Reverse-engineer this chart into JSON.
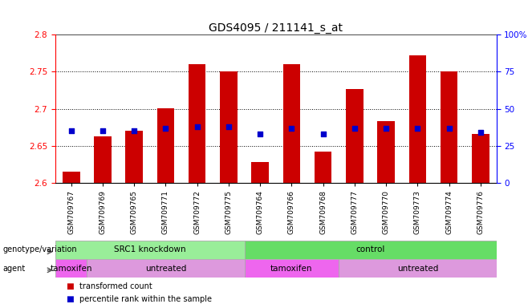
{
  "title": "GDS4095 / 211141_s_at",
  "samples": [
    "GSM709767",
    "GSM709769",
    "GSM709765",
    "GSM709771",
    "GSM709772",
    "GSM709775",
    "GSM709764",
    "GSM709766",
    "GSM709768",
    "GSM709777",
    "GSM709770",
    "GSM709773",
    "GSM709774",
    "GSM709776"
  ],
  "bar_values": [
    2.615,
    2.663,
    2.67,
    2.7,
    2.76,
    2.75,
    2.628,
    2.76,
    2.642,
    2.726,
    2.683,
    2.772,
    2.75,
    2.666
  ],
  "dot_values": [
    35,
    35,
    35,
    37,
    38,
    38,
    33,
    37,
    33,
    37,
    37,
    37,
    37,
    34
  ],
  "ymin": 2.6,
  "ymax": 2.8,
  "y2min": 0,
  "y2max": 100,
  "yticks": [
    2.6,
    2.65,
    2.7,
    2.75,
    2.8
  ],
  "y2ticks": [
    0,
    25,
    50,
    75,
    100
  ],
  "bar_color": "#cc0000",
  "dot_color": "#0000cc",
  "bar_width": 0.55,
  "groups": [
    {
      "label": "SRC1 knockdown",
      "start": 0,
      "end": 5,
      "color": "#99ee99"
    },
    {
      "label": "control",
      "start": 6,
      "end": 13,
      "color": "#66dd66"
    }
  ],
  "agents": [
    {
      "label": "tamoxifen",
      "start": 0,
      "end": 0,
      "color": "#ee66ee"
    },
    {
      "label": "untreated",
      "start": 1,
      "end": 5,
      "color": "#dd99dd"
    },
    {
      "label": "tamoxifen",
      "start": 6,
      "end": 8,
      "color": "#ee66ee"
    },
    {
      "label": "untreated",
      "start": 9,
      "end": 13,
      "color": "#dd99dd"
    }
  ],
  "legend_items": [
    {
      "label": "transformed count",
      "color": "#cc0000"
    },
    {
      "label": "percentile rank within the sample",
      "color": "#0000cc"
    }
  ],
  "geno_label": "genotype/variation",
  "agent_label": "agent",
  "background_color": "#ffffff",
  "title_fontsize": 10,
  "tick_fontsize": 7.5,
  "sample_fontsize": 6.5,
  "row_label_fontsize": 7,
  "row_content_fontsize": 7.5
}
